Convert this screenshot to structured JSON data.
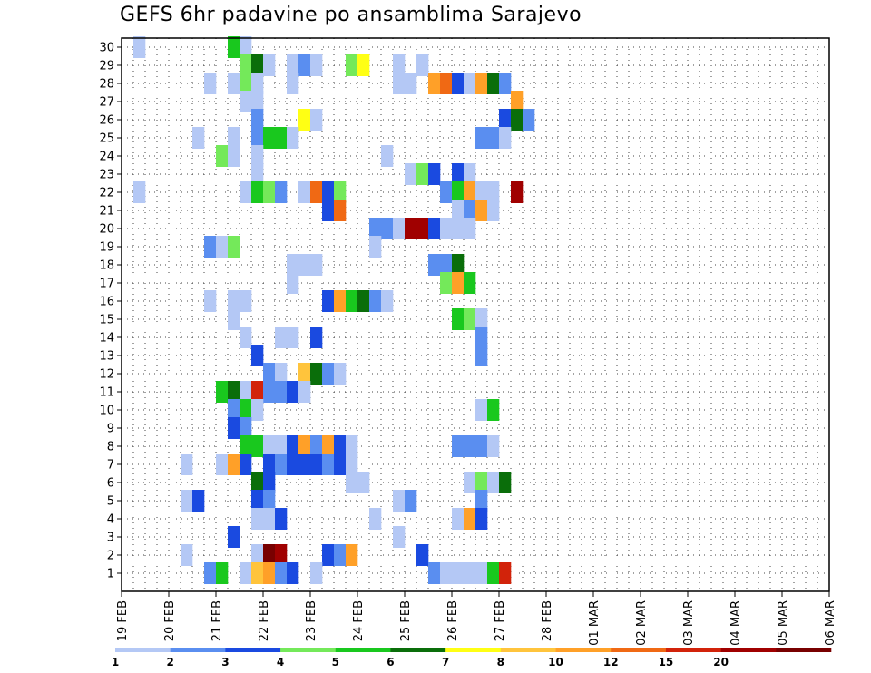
{
  "chart_data": {
    "type": "heatmap",
    "title": "GEFS 6hr padavine po ansamblima Sarajevo",
    "y_categories": [
      "1",
      "2",
      "3",
      "4",
      "5",
      "6",
      "7",
      "8",
      "9",
      "10",
      "11",
      "12",
      "13",
      "14",
      "15",
      "16",
      "17",
      "18",
      "19",
      "20",
      "21",
      "22",
      "23",
      "24",
      "25",
      "26",
      "27",
      "28",
      "29",
      "30"
    ],
    "x_tick_labels": [
      "19 FEB",
      "20 FEB",
      "21 FEB",
      "22 FEB",
      "23 FEB",
      "24 FEB",
      "25 FEB",
      "26 FEB",
      "27 FEB",
      "28 FEB",
      "01 MAR",
      "02 MAR",
      "03 MAR",
      "04 MAR",
      "05 MAR",
      "06 MAR"
    ],
    "x_unit": "6-hour steps",
    "xlim": [
      0,
      60
    ],
    "grid": true,
    "legend_placement": "bottom",
    "colorbar": {
      "labels": [
        "1",
        "2",
        "3",
        "4",
        "5",
        "6",
        "7",
        "8",
        "10",
        "12",
        "15",
        "20"
      ],
      "colors": [
        "#b4c8f5",
        "#5a8ef0",
        "#1a4ae0",
        "#74e95a",
        "#19c81e",
        "#0a6e0a",
        "#ffff14",
        "#ffc43c",
        "#ffa028",
        "#f06914",
        "#d2230a",
        "#a00000",
        "#780000"
      ]
    },
    "cells": [
      [
        30,
        1,
        0
      ],
      [
        30,
        9,
        4
      ],
      [
        30,
        10,
        0
      ],
      [
        29,
        10,
        3
      ],
      [
        29,
        11,
        5
      ],
      [
        29,
        12,
        0
      ],
      [
        29,
        14,
        0
      ],
      [
        29,
        15,
        1
      ],
      [
        29,
        16,
        0
      ],
      [
        29,
        19,
        3
      ],
      [
        29,
        20,
        6
      ],
      [
        29,
        23,
        0
      ],
      [
        29,
        25,
        0
      ],
      [
        28,
        7,
        0
      ],
      [
        28,
        9,
        0
      ],
      [
        28,
        10,
        3
      ],
      [
        28,
        11,
        0
      ],
      [
        28,
        14,
        0
      ],
      [
        28,
        23,
        0
      ],
      [
        28,
        24,
        0
      ],
      [
        28,
        26,
        8
      ],
      [
        28,
        27,
        9
      ],
      [
        28,
        28,
        2
      ],
      [
        28,
        29,
        0
      ],
      [
        28,
        30,
        8
      ],
      [
        28,
        31,
        5
      ],
      [
        28,
        32,
        1
      ],
      [
        27,
        10,
        0
      ],
      [
        27,
        11,
        0
      ],
      [
        27,
        33,
        8
      ],
      [
        26,
        11,
        1
      ],
      [
        26,
        15,
        6
      ],
      [
        26,
        16,
        0
      ],
      [
        26,
        32,
        2
      ],
      [
        26,
        33,
        5
      ],
      [
        26,
        34,
        1
      ],
      [
        25,
        6,
        0
      ],
      [
        25,
        9,
        0
      ],
      [
        25,
        11,
        1
      ],
      [
        25,
        12,
        4
      ],
      [
        25,
        13,
        4
      ],
      [
        25,
        14,
        0
      ],
      [
        25,
        30,
        1
      ],
      [
        25,
        31,
        1
      ],
      [
        25,
        32,
        0
      ],
      [
        24,
        8,
        3
      ],
      [
        24,
        9,
        0
      ],
      [
        24,
        11,
        0
      ],
      [
        24,
        22,
        0
      ],
      [
        23,
        11,
        0
      ],
      [
        23,
        24,
        0
      ],
      [
        23,
        25,
        3
      ],
      [
        23,
        26,
        2
      ],
      [
        23,
        28,
        2
      ],
      [
        23,
        29,
        0
      ],
      [
        22,
        1,
        0
      ],
      [
        22,
        10,
        0
      ],
      [
        22,
        11,
        4
      ],
      [
        22,
        12,
        3
      ],
      [
        22,
        13,
        1
      ],
      [
        22,
        15,
        0
      ],
      [
        22,
        16,
        9
      ],
      [
        22,
        17,
        2
      ],
      [
        22,
        18,
        3
      ],
      [
        22,
        27,
        1
      ],
      [
        22,
        28,
        4
      ],
      [
        22,
        29,
        8
      ],
      [
        22,
        30,
        0
      ],
      [
        22,
        31,
        0
      ],
      [
        22,
        33,
        11
      ],
      [
        21,
        17,
        2
      ],
      [
        21,
        18,
        9
      ],
      [
        21,
        28,
        0
      ],
      [
        21,
        29,
        1
      ],
      [
        21,
        30,
        8
      ],
      [
        21,
        31,
        0
      ],
      [
        20,
        21,
        1
      ],
      [
        20,
        22,
        1
      ],
      [
        20,
        23,
        0
      ],
      [
        20,
        24,
        11
      ],
      [
        20,
        25,
        11
      ],
      [
        20,
        26,
        2
      ],
      [
        20,
        27,
        0
      ],
      [
        20,
        28,
        0
      ],
      [
        20,
        29,
        0
      ],
      [
        19,
        7,
        1
      ],
      [
        19,
        8,
        0
      ],
      [
        19,
        9,
        3
      ],
      [
        19,
        21,
        0
      ],
      [
        18,
        14,
        0
      ],
      [
        18,
        15,
        0
      ],
      [
        18,
        16,
        0
      ],
      [
        18,
        26,
        1
      ],
      [
        18,
        27,
        1
      ],
      [
        18,
        28,
        5
      ],
      [
        17,
        14,
        0
      ],
      [
        17,
        27,
        3
      ],
      [
        17,
        28,
        8
      ],
      [
        17,
        29,
        4
      ],
      [
        16,
        7,
        0
      ],
      [
        16,
        9,
        0
      ],
      [
        16,
        10,
        0
      ],
      [
        16,
        17,
        2
      ],
      [
        16,
        18,
        8
      ],
      [
        16,
        19,
        4
      ],
      [
        16,
        20,
        5
      ],
      [
        16,
        21,
        1
      ],
      [
        16,
        22,
        0
      ],
      [
        15,
        9,
        0
      ],
      [
        15,
        28,
        4
      ],
      [
        15,
        29,
        3
      ],
      [
        15,
        30,
        0
      ],
      [
        14,
        10,
        0
      ],
      [
        14,
        13,
        0
      ],
      [
        14,
        14,
        0
      ],
      [
        14,
        16,
        2
      ],
      [
        14,
        30,
        1
      ],
      [
        13,
        11,
        2
      ],
      [
        13,
        30,
        1
      ],
      [
        12,
        12,
        1
      ],
      [
        12,
        13,
        0
      ],
      [
        12,
        15,
        7
      ],
      [
        12,
        16,
        5
      ],
      [
        12,
        17,
        1
      ],
      [
        12,
        18,
        0
      ],
      [
        11,
        8,
        4
      ],
      [
        11,
        9,
        5
      ],
      [
        11,
        10,
        0
      ],
      [
        11,
        11,
        10
      ],
      [
        11,
        12,
        1
      ],
      [
        11,
        13,
        1
      ],
      [
        11,
        14,
        2
      ],
      [
        11,
        15,
        0
      ],
      [
        10,
        9,
        1
      ],
      [
        10,
        10,
        4
      ],
      [
        10,
        11,
        0
      ],
      [
        10,
        30,
        0
      ],
      [
        10,
        31,
        4
      ],
      [
        9,
        9,
        2
      ],
      [
        9,
        10,
        1
      ],
      [
        8,
        10,
        4
      ],
      [
        8,
        11,
        4
      ],
      [
        8,
        12,
        0
      ],
      [
        8,
        13,
        0
      ],
      [
        8,
        14,
        2
      ],
      [
        8,
        15,
        8
      ],
      [
        8,
        16,
        1
      ],
      [
        8,
        17,
        8
      ],
      [
        8,
        18,
        2
      ],
      [
        8,
        19,
        0
      ],
      [
        8,
        28,
        1
      ],
      [
        8,
        29,
        1
      ],
      [
        8,
        30,
        1
      ],
      [
        8,
        31,
        0
      ],
      [
        7,
        5,
        0
      ],
      [
        7,
        8,
        0
      ],
      [
        7,
        9,
        8
      ],
      [
        7,
        10,
        2
      ],
      [
        7,
        12,
        2
      ],
      [
        7,
        13,
        1
      ],
      [
        7,
        14,
        2
      ],
      [
        7,
        15,
        2
      ],
      [
        7,
        16,
        2
      ],
      [
        7,
        17,
        1
      ],
      [
        7,
        18,
        2
      ],
      [
        7,
        19,
        0
      ],
      [
        6,
        11,
        5
      ],
      [
        6,
        12,
        2
      ],
      [
        6,
        19,
        0
      ],
      [
        6,
        20,
        0
      ],
      [
        6,
        29,
        0
      ],
      [
        6,
        30,
        3
      ],
      [
        6,
        31,
        0
      ],
      [
        6,
        32,
        5
      ],
      [
        5,
        5,
        0
      ],
      [
        5,
        6,
        2
      ],
      [
        5,
        11,
        2
      ],
      [
        5,
        12,
        1
      ],
      [
        5,
        23,
        0
      ],
      [
        5,
        24,
        1
      ],
      [
        5,
        30,
        1
      ],
      [
        4,
        11,
        0
      ],
      [
        4,
        12,
        0
      ],
      [
        4,
        13,
        2
      ],
      [
        4,
        21,
        0
      ],
      [
        4,
        28,
        0
      ],
      [
        4,
        29,
        8
      ],
      [
        4,
        30,
        2
      ],
      [
        3,
        9,
        2
      ],
      [
        3,
        23,
        0
      ],
      [
        2,
        5,
        0
      ],
      [
        2,
        11,
        0
      ],
      [
        2,
        12,
        12
      ],
      [
        2,
        13,
        11
      ],
      [
        2,
        17,
        2
      ],
      [
        2,
        18,
        1
      ],
      [
        2,
        19,
        8
      ],
      [
        2,
        25,
        2
      ],
      [
        1,
        7,
        1
      ],
      [
        1,
        8,
        4
      ],
      [
        1,
        10,
        0
      ],
      [
        1,
        11,
        7
      ],
      [
        1,
        12,
        8
      ],
      [
        1,
        13,
        1
      ],
      [
        1,
        14,
        2
      ],
      [
        1,
        16,
        0
      ],
      [
        1,
        26,
        1
      ],
      [
        1,
        27,
        0
      ],
      [
        1,
        28,
        0
      ],
      [
        1,
        29,
        0
      ],
      [
        1,
        30,
        0
      ],
      [
        1,
        31,
        4
      ],
      [
        1,
        32,
        10
      ]
    ]
  }
}
